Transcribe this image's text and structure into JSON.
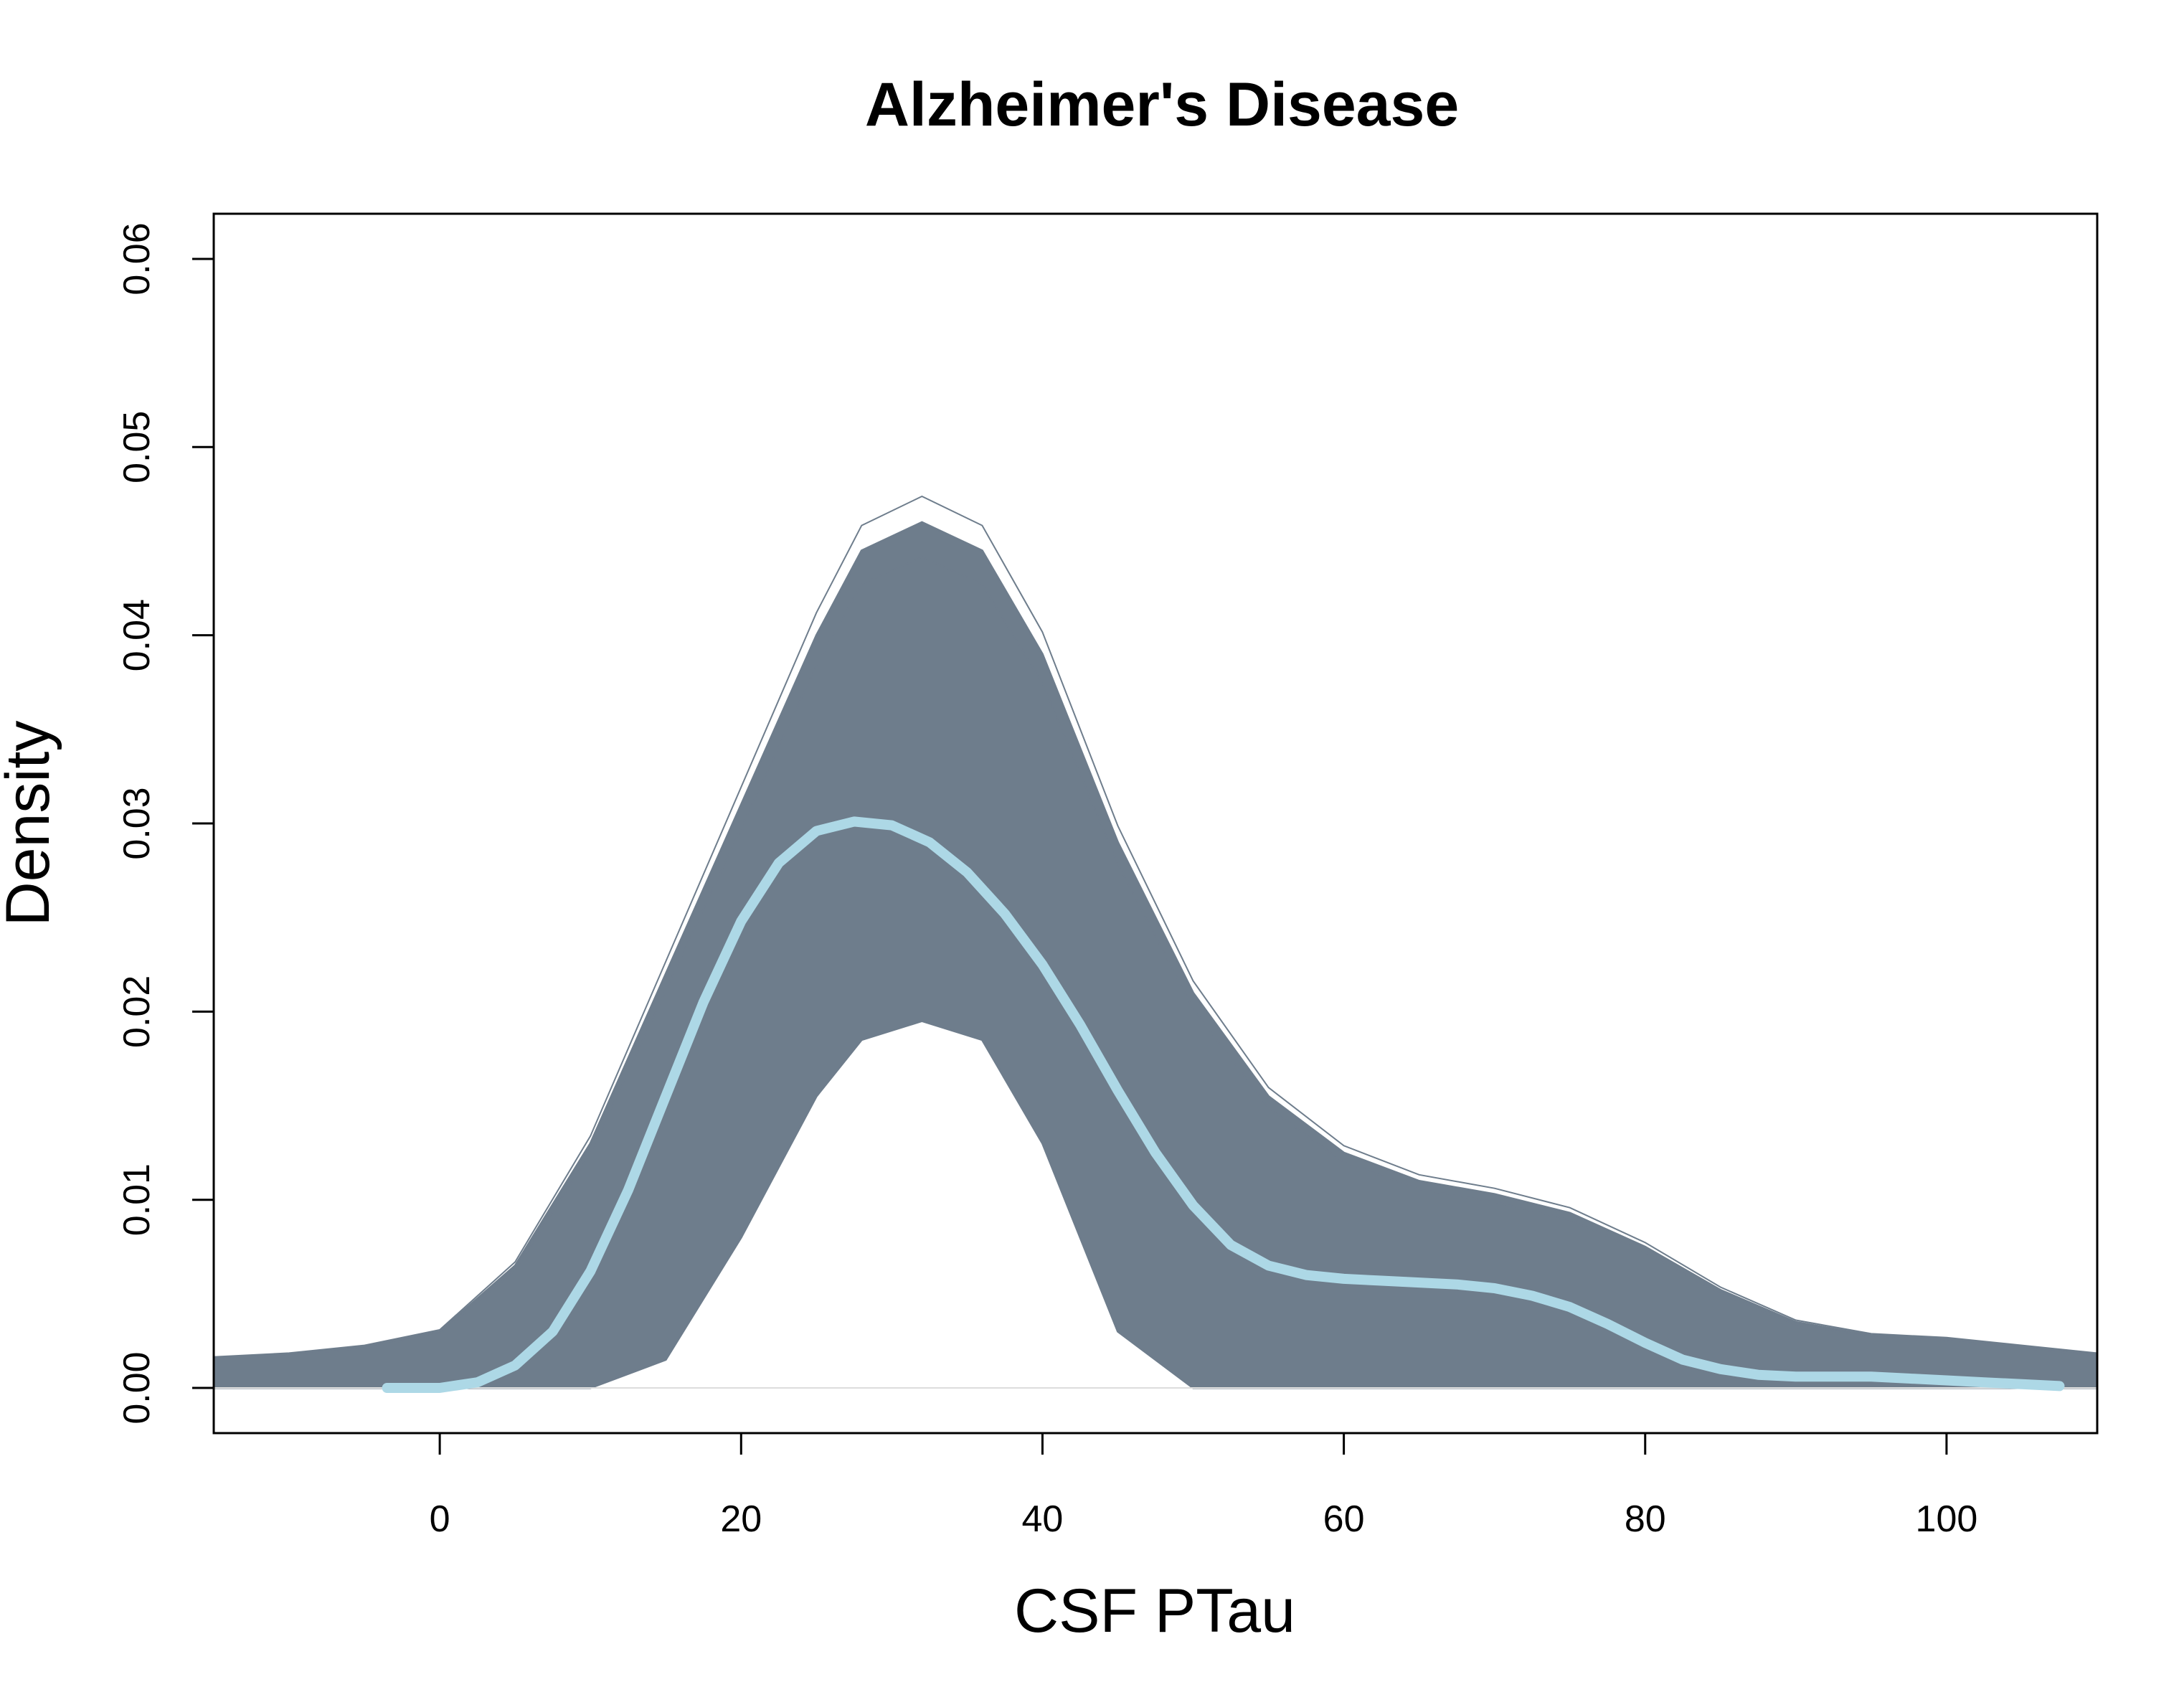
{
  "chart_data": {
    "type": "line",
    "title": "Alzheimer's Disease",
    "xlabel": "CSF PTau",
    "ylabel": "Density",
    "xlim": [
      -15,
      110
    ],
    "ylim": [
      -0.0024,
      0.0624
    ],
    "x_ticks": [
      0,
      20,
      40,
      60,
      80,
      100
    ],
    "x_tick_labels": [
      "0",
      "20",
      "40",
      "60",
      "80",
      "100"
    ],
    "y_ticks": [
      0,
      0.01,
      0.02,
      0.03,
      0.04,
      0.05,
      0.06
    ],
    "y_tick_labels": [
      "0.00",
      "0.01",
      "0.02",
      "0.03",
      "0.04",
      "0.05",
      "0.06"
    ],
    "grid": false,
    "legend": "none",
    "band": {
      "color": "#6e7d8c",
      "x": [
        -15,
        -10,
        -5,
        0,
        5,
        10,
        15,
        20,
        25,
        28,
        32,
        36,
        40,
        45,
        50,
        55,
        60,
        65,
        70,
        75,
        80,
        85,
        90,
        95,
        100,
        105,
        110
      ],
      "upper": [
        0.0016,
        0.0018,
        0.0022,
        0.003,
        0.0065,
        0.013,
        0.022,
        0.031,
        0.04,
        0.0445,
        0.046,
        0.0445,
        0.039,
        0.029,
        0.021,
        0.0155,
        0.0125,
        0.011,
        0.0103,
        0.0093,
        0.0075,
        0.0052,
        0.0035,
        0.0028,
        0.0026,
        0.0022,
        0.0018
      ],
      "lower": [
        0.0,
        0.0,
        0.0,
        0.0,
        0.0,
        0.0,
        0.0015,
        0.008,
        0.0155,
        0.0185,
        0.0195,
        0.0185,
        0.013,
        0.003,
        0.0,
        0.0,
        0.0,
        0.0,
        0.0,
        0.0,
        0.0,
        0.0,
        0.0,
        0.0,
        0.0,
        0.0,
        0.0
      ]
    },
    "series": [
      {
        "color": "#add8e6",
        "x": [
          -3.5,
          0,
          2.5,
          5,
          7.5,
          10,
          12.5,
          15,
          17.5,
          20,
          22.5,
          25,
          27.5,
          30,
          32.5,
          35,
          37.5,
          40,
          42.5,
          45,
          47.5,
          50,
          52.5,
          55,
          57.5,
          60,
          62.5,
          65,
          67.5,
          70,
          72.5,
          75,
          77.5,
          80,
          82.5,
          85,
          87.5,
          90,
          92.5,
          95,
          97.5,
          100,
          102.5,
          105,
          107.5
        ],
        "y": [
          0.0,
          0.0,
          0.0003,
          0.0012,
          0.003,
          0.0062,
          0.0105,
          0.0155,
          0.0205,
          0.0248,
          0.0279,
          0.0296,
          0.0301,
          0.0299,
          0.029,
          0.0274,
          0.0252,
          0.0225,
          0.0193,
          0.0158,
          0.0125,
          0.0097,
          0.0076,
          0.0065,
          0.006,
          0.0058,
          0.0057,
          0.0056,
          0.0055,
          0.0053,
          0.0049,
          0.0043,
          0.0034,
          0.0024,
          0.0015,
          0.001,
          0.0007,
          0.0006,
          0.0006,
          0.0006,
          0.0005,
          0.0004,
          0.0003,
          0.0002,
          0.0001
        ]
      }
    ]
  }
}
